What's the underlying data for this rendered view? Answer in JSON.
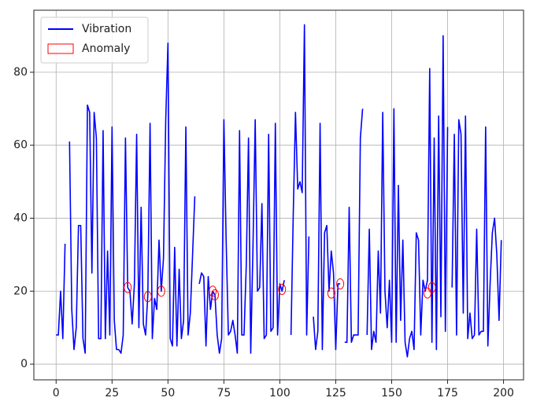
{
  "chart_data": {
    "type": "line",
    "x": [
      0,
      1,
      2,
      3,
      4,
      5,
      6,
      7,
      8,
      9,
      10,
      11,
      12,
      13,
      14,
      15,
      16,
      17,
      18,
      19,
      20,
      21,
      22,
      23,
      24,
      25,
      26,
      27,
      28,
      29,
      30,
      31,
      32,
      33,
      34,
      35,
      36,
      37,
      38,
      39,
      40,
      41,
      42,
      43,
      44,
      45,
      46,
      47,
      48,
      49,
      50,
      51,
      52,
      53,
      54,
      55,
      56,
      57,
      58,
      59,
      60,
      61,
      62,
      63,
      64,
      65,
      66,
      67,
      68,
      69,
      70,
      71,
      72,
      73,
      74,
      75,
      76,
      77,
      78,
      79,
      80,
      81,
      82,
      83,
      84,
      85,
      86,
      87,
      88,
      89,
      90,
      91,
      92,
      93,
      94,
      95,
      96,
      97,
      98,
      99,
      100,
      101,
      102,
      103,
      104,
      105,
      106,
      107,
      108,
      109,
      110,
      111,
      112,
      113,
      114,
      115,
      116,
      117,
      118,
      119,
      120,
      121,
      122,
      123,
      124,
      125,
      126,
      127,
      128,
      129,
      130,
      131,
      132,
      133,
      134,
      135,
      136,
      137,
      138,
      139,
      140,
      141,
      142,
      143,
      144,
      145,
      146,
      147,
      148,
      149,
      150,
      151,
      152,
      153,
      154,
      155,
      156,
      157,
      158,
      159,
      160,
      161,
      162,
      163,
      164,
      165,
      166,
      167,
      168,
      169,
      170,
      171,
      172,
      173,
      174,
      175,
      176,
      177,
      178,
      179,
      180,
      181,
      182,
      183,
      184,
      185,
      186,
      187,
      188,
      189,
      190,
      191,
      192,
      193,
      194,
      195,
      196,
      197,
      198,
      199
    ],
    "series": [
      {
        "name": "Vibration",
        "color": "#0000ff",
        "values": [
          8,
          8,
          20,
          7,
          33,
          null,
          61,
          15,
          4,
          10,
          38,
          38,
          7,
          3,
          71,
          69,
          25,
          69,
          62,
          7,
          7,
          64,
          7,
          31,
          8,
          65,
          12,
          4,
          4,
          3,
          8,
          62,
          21,
          20,
          11,
          22,
          63,
          10,
          43,
          11,
          8,
          19,
          66,
          7,
          18,
          15,
          34,
          20,
          29,
          67,
          88,
          7,
          5,
          32,
          5,
          26,
          7,
          12,
          65,
          8,
          14,
          30,
          46,
          null,
          22,
          25,
          24,
          5,
          24,
          15,
          20,
          19,
          8,
          3,
          7,
          67,
          34,
          8,
          9,
          12,
          8,
          3,
          64,
          8,
          8,
          27,
          62,
          3,
          32,
          67,
          20,
          21,
          44,
          7,
          8,
          63,
          9,
          10,
          66,
          8,
          22,
          20,
          23,
          null,
          null,
          8,
          41,
          69,
          48,
          50,
          47,
          93,
          8,
          35,
          null,
          13,
          4,
          9,
          66,
          4,
          36,
          38,
          20,
          31,
          25,
          4,
          22,
          22,
          null,
          6,
          6,
          43,
          6,
          8,
          8,
          8,
          62,
          70,
          null,
          8,
          37,
          4,
          9,
          6,
          31,
          14,
          69,
          20,
          10,
          23,
          6,
          70,
          6,
          49,
          12,
          34,
          6,
          2,
          7,
          9,
          4,
          36,
          34,
          8,
          23,
          20,
          23,
          81,
          6,
          62,
          4,
          68,
          13,
          90,
          9,
          65,
          null,
          21,
          63,
          8,
          67,
          63,
          14,
          68,
          7,
          14,
          7,
          8,
          37,
          8,
          9,
          9,
          65,
          5,
          22,
          36,
          40,
          30,
          12,
          34
        ]
      },
      {
        "name": "Anomaly",
        "color": "#ff0000",
        "x": [
          32,
          41,
          47,
          70,
          71,
          101,
          123,
          127,
          166,
          168
        ],
        "values": [
          21,
          18.5,
          20,
          20,
          19,
          20.5,
          19.5,
          22,
          19.5,
          21
        ]
      }
    ],
    "xlim": [
      -9.95,
      208.95
    ],
    "ylim": [
      -4.3,
      97
    ],
    "xticks": [
      0,
      25,
      50,
      75,
      100,
      125,
      150,
      175,
      200
    ],
    "yticks": [
      0,
      20,
      40,
      60,
      80
    ],
    "grid": true,
    "legend": "upper left"
  }
}
